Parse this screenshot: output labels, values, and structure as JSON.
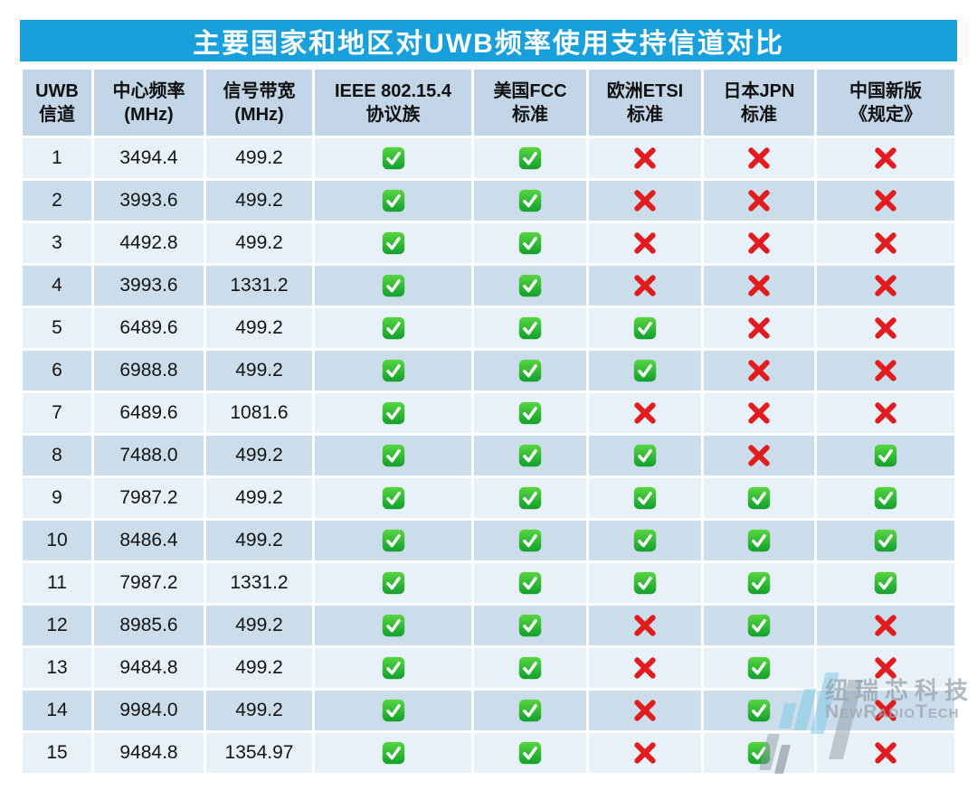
{
  "page": {
    "title": "主要国家和地区对UWB频率使用支持信道对比"
  },
  "colors": {
    "title_bg": "#17A0DB",
    "header_bg": "#C2D6E8",
    "row_odd": "#E9F1F8",
    "row_even": "#CBDDEB",
    "check_green_top": "#57D641",
    "check_green_bottom": "#129F2C",
    "cross_red": "#E11B1E",
    "text": "#141414"
  },
  "chart_data": {
    "type": "table",
    "title": "主要国家和地区对UWB频率使用支持信道对比",
    "columns": [
      {
        "line1": "UWB",
        "line2": "信道"
      },
      {
        "line1": "中心频率",
        "line2": "(MHz)"
      },
      {
        "line1": "信号带宽",
        "line2": "(MHz)"
      },
      {
        "line1": "IEEE 802.15.4",
        "line2": "协议族"
      },
      {
        "line1": "美国FCC",
        "line2": "标准"
      },
      {
        "line1": "欧洲ETSI",
        "line2": "标准"
      },
      {
        "line1": "日本JPN",
        "line2": "标准"
      },
      {
        "line1": "中国新版",
        "line2": "《规定》"
      }
    ],
    "rows": [
      {
        "channel": "1",
        "center_mhz": "3494.4",
        "bandwidth_mhz": "499.2",
        "ieee": true,
        "fcc": true,
        "etsi": false,
        "jpn": false,
        "china": false
      },
      {
        "channel": "2",
        "center_mhz": "3993.6",
        "bandwidth_mhz": "499.2",
        "ieee": true,
        "fcc": true,
        "etsi": false,
        "jpn": false,
        "china": false
      },
      {
        "channel": "3",
        "center_mhz": "4492.8",
        "bandwidth_mhz": "499.2",
        "ieee": true,
        "fcc": true,
        "etsi": false,
        "jpn": false,
        "china": false
      },
      {
        "channel": "4",
        "center_mhz": "3993.6",
        "bandwidth_mhz": "1331.2",
        "ieee": true,
        "fcc": true,
        "etsi": false,
        "jpn": false,
        "china": false
      },
      {
        "channel": "5",
        "center_mhz": "6489.6",
        "bandwidth_mhz": "499.2",
        "ieee": true,
        "fcc": true,
        "etsi": true,
        "jpn": false,
        "china": false
      },
      {
        "channel": "6",
        "center_mhz": "6988.8",
        "bandwidth_mhz": "499.2",
        "ieee": true,
        "fcc": true,
        "etsi": true,
        "jpn": false,
        "china": false
      },
      {
        "channel": "7",
        "center_mhz": "6489.6",
        "bandwidth_mhz": "1081.6",
        "ieee": true,
        "fcc": true,
        "etsi": false,
        "jpn": false,
        "china": false
      },
      {
        "channel": "8",
        "center_mhz": "7488.0",
        "bandwidth_mhz": "499.2",
        "ieee": true,
        "fcc": true,
        "etsi": true,
        "jpn": false,
        "china": true
      },
      {
        "channel": "9",
        "center_mhz": "7987.2",
        "bandwidth_mhz": "499.2",
        "ieee": true,
        "fcc": true,
        "etsi": true,
        "jpn": true,
        "china": true
      },
      {
        "channel": "10",
        "center_mhz": "8486.4",
        "bandwidth_mhz": "499.2",
        "ieee": true,
        "fcc": true,
        "etsi": true,
        "jpn": true,
        "china": true
      },
      {
        "channel": "11",
        "center_mhz": "7987.2",
        "bandwidth_mhz": "1331.2",
        "ieee": true,
        "fcc": true,
        "etsi": true,
        "jpn": true,
        "china": true
      },
      {
        "channel": "12",
        "center_mhz": "8985.6",
        "bandwidth_mhz": "499.2",
        "ieee": true,
        "fcc": true,
        "etsi": false,
        "jpn": true,
        "china": false
      },
      {
        "channel": "13",
        "center_mhz": "9484.8",
        "bandwidth_mhz": "499.2",
        "ieee": true,
        "fcc": true,
        "etsi": false,
        "jpn": true,
        "china": false
      },
      {
        "channel": "14",
        "center_mhz": "9984.0",
        "bandwidth_mhz": "499.2",
        "ieee": true,
        "fcc": true,
        "etsi": false,
        "jpn": true,
        "china": false
      },
      {
        "channel": "15",
        "center_mhz": "9484.8",
        "bandwidth_mhz": "1354.97",
        "ieee": true,
        "fcc": true,
        "etsi": false,
        "jpn": true,
        "china": false
      }
    ]
  },
  "watermark": {
    "cn": "纽瑞芯科技",
    "en": "NewRadioTech"
  }
}
